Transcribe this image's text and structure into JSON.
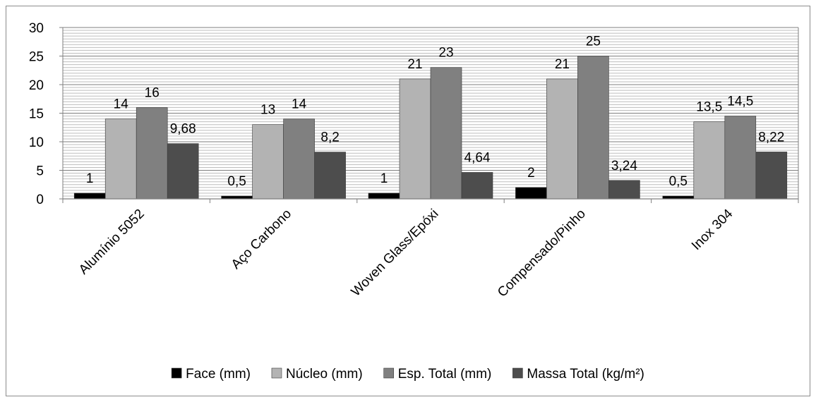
{
  "chart_data": {
    "type": "bar",
    "categories": [
      "Alumínio 5052",
      "Aço Carbono",
      "Woven Glass/Epóxi",
      "Compensado/Pinho",
      "Inox 304"
    ],
    "series": [
      {
        "name": "Face (mm)",
        "values": [
          1,
          0.5,
          1,
          2,
          0.5
        ],
        "labels": [
          "1",
          "0,5",
          "1",
          "2",
          "0,5"
        ],
        "color": "#000000"
      },
      {
        "name": "Núcleo (mm)",
        "values": [
          14,
          13,
          21,
          21,
          13.5
        ],
        "labels": [
          "14",
          "13",
          "21",
          "21",
          "13,5"
        ],
        "color": "#b3b3b3"
      },
      {
        "name": "Esp. Total (mm)",
        "values": [
          16,
          14,
          23,
          25,
          14.5
        ],
        "labels": [
          "16",
          "14",
          "23",
          "25",
          "14,5"
        ],
        "color": "#808080"
      },
      {
        "name": "Massa Total (kg/m²)",
        "values": [
          9.68,
          8.2,
          4.64,
          3.24,
          8.22
        ],
        "labels": [
          "9,68",
          "8,2",
          "4,64",
          "3,24",
          "8,22"
        ],
        "color": "#4d4d4d"
      }
    ],
    "ylim": [
      0,
      30
    ],
    "yticks": [
      "0",
      "5",
      "10",
      "15",
      "20",
      "25",
      "30"
    ],
    "xlabel": "",
    "ylabel": "",
    "grid": true,
    "legend_position": "bottom"
  }
}
